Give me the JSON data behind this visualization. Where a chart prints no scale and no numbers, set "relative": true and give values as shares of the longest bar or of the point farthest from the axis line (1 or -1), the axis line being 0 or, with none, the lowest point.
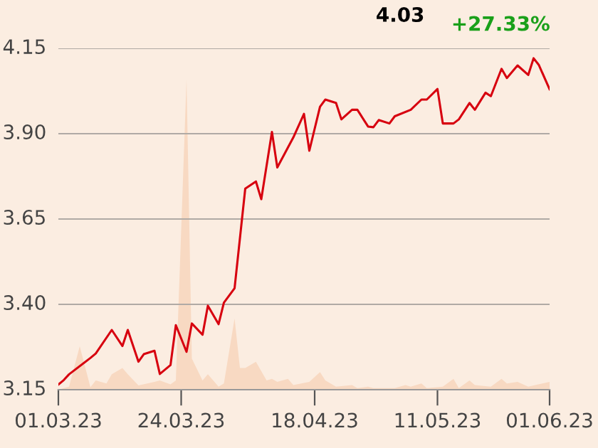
{
  "chart_data": [
    {
      "type": "line",
      "annotations": [
        "4.03",
        "+27.33%"
      ],
      "xlim": [
        "2023-03-01",
        "2023-06-01"
      ],
      "xticks": [
        {
          "value": "2023-03-01",
          "label": "01.03.23"
        },
        {
          "value": "2023-03-24",
          "label": "24.03.23"
        },
        {
          "value": "2023-04-18",
          "label": "18.04.23"
        },
        {
          "value": "2023-05-11",
          "label": "11.05.23"
        },
        {
          "value": "2023-06-01",
          "label": "01.06.23"
        }
      ],
      "ylim": [
        3.15,
        4.15
      ],
      "yticks": [
        3.15,
        {
          "value": 3.4,
          "label": "3.40"
        },
        3.65,
        {
          "value": 3.9,
          "label": "3.90"
        },
        4.15
      ],
      "grid": "y",
      "series": [
        {
          "color": "#d7000f",
          "x": [
            "2023-03-01",
            "2023-03-02",
            "2023-03-03",
            "2023-03-07",
            "2023-03-08",
            "2023-03-11",
            "2023-03-13",
            "2023-03-14",
            "2023-03-16",
            "2023-03-17",
            "2023-03-19",
            "2023-03-20",
            "2023-03-22",
            "2023-03-23",
            "2023-03-25",
            "2023-03-26",
            "2023-03-28",
            "2023-03-29",
            "2023-03-31",
            "2023-04-01",
            "2023-04-03",
            "2023-04-05",
            "2023-04-07",
            "2023-04-08",
            "2023-04-10",
            "2023-04-11",
            "2023-04-14",
            "2023-04-16",
            "2023-04-17",
            "2023-04-19",
            "2023-04-20",
            "2023-04-22",
            "2023-04-23",
            "2023-04-25",
            "2023-04-26",
            "2023-04-28",
            "2023-04-29",
            "2023-04-30",
            "2023-05-02",
            "2023-05-03",
            "2023-05-06",
            "2023-05-08",
            "2023-05-09",
            "2023-05-11",
            "2023-05-12",
            "2023-05-14",
            "2023-05-15",
            "2023-05-17",
            "2023-05-18",
            "2023-05-20",
            "2023-05-21",
            "2023-05-23",
            "2023-05-24",
            "2023-05-26",
            "2023-05-28",
            "2023-05-29",
            "2023-05-30",
            "2023-06-01"
          ],
          "values": [
            3.165,
            3.178,
            3.195,
            3.243,
            3.256,
            3.325,
            3.278,
            3.325,
            3.232,
            3.254,
            3.264,
            3.196,
            3.222,
            3.339,
            3.261,
            3.344,
            3.311,
            3.396,
            3.342,
            3.405,
            3.447,
            3.739,
            3.76,
            3.708,
            3.905,
            3.801,
            3.889,
            3.958,
            3.85,
            3.979,
            4.0,
            3.99,
            3.942,
            3.97,
            3.97,
            3.921,
            3.919,
            3.94,
            3.93,
            3.951,
            3.97,
            4.0,
            4.0,
            4.031,
            3.93,
            3.93,
            3.942,
            3.99,
            3.97,
            4.02,
            4.01,
            4.09,
            4.063,
            4.1,
            4.072,
            4.121,
            4.101,
            4.03
          ]
        }
      ]
    },
    {
      "type": "area",
      "relative": true,
      "xlim": [
        "2023-03-01",
        "2023-06-01"
      ],
      "series": [
        {
          "color": "#f8d9c2",
          "x": [
            "2023-03-01",
            "2023-03-02",
            "2023-03-03",
            "2023-03-05",
            "2023-03-07",
            "2023-03-08",
            "2023-03-10",
            "2023-03-11",
            "2023-03-13",
            "2023-03-14",
            "2023-03-16",
            "2023-03-19",
            "2023-03-20",
            "2023-03-22",
            "2023-03-23",
            "2023-03-25",
            "2023-03-26",
            "2023-03-28",
            "2023-03-29",
            "2023-03-31",
            "2023-04-01",
            "2023-04-03",
            "2023-04-04",
            "2023-04-05",
            "2023-04-07",
            "2023-04-09",
            "2023-04-10",
            "2023-04-11",
            "2023-04-13",
            "2023-04-14",
            "2023-04-17",
            "2023-04-19",
            "2023-04-20",
            "2023-04-22",
            "2023-04-25",
            "2023-04-26",
            "2023-04-28",
            "2023-04-29",
            "2023-05-03",
            "2023-05-05",
            "2023-05-06",
            "2023-05-08",
            "2023-05-09",
            "2023-05-12",
            "2023-05-14",
            "2023-05-15",
            "2023-05-17",
            "2023-05-18",
            "2023-05-21",
            "2023-05-23",
            "2023-05-24",
            "2023-05-26",
            "2023-05-28",
            "2023-06-01"
          ],
          "values": [
            0,
            0.005,
            0.01,
            0.14,
            0.008,
            0.03,
            0.02,
            0.05,
            0.07,
            0.05,
            0.014,
            0.025,
            0.03,
            0.017,
            0.03,
            1,
            0.1,
            0.03,
            0.05,
            0.01,
            0.02,
            0.23,
            0.07,
            0.07,
            0.09,
            0.03,
            0.035,
            0.025,
            0.035,
            0.015,
            0.025,
            0.057,
            0.03,
            0.01,
            0.015,
            0.005,
            0.01,
            0.005,
            0.005,
            0.015,
            0.01,
            0.02,
            0.005,
            0.01,
            0.035,
            0.005,
            0.03,
            0.015,
            0.01,
            0.035,
            0.02,
            0.025,
            0.01,
            0.025
          ]
        }
      ]
    }
  ]
}
